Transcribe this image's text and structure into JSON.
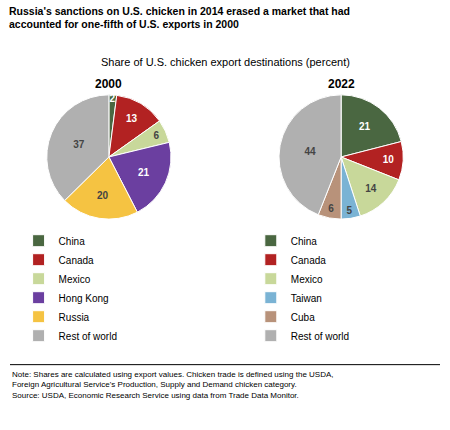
{
  "title": "Russia's sanctions on U.S. chicken in 2014 erased a market that had\naccounted for one-fifth of U.S. exports in 2000",
  "subtitle": "Share of U.S. chicken export destinations (percent)",
  "annotations": [
    "Note: Shares are calculated using export values. Chicken trade is defined using the USDA,",
    "Foreign Agricultural Service's Production, Supply and Demand chicken category.",
    "Source: USDA, Economic Research Service using data from Trade Data Monitor."
  ],
  "chart_data": [
    {
      "type": "pie",
      "title": "2000",
      "categories": [
        "China",
        "Canada",
        "Mexico",
        "Hong Kong",
        "Russia",
        "Rest of world"
      ],
      "values": [
        2,
        13,
        6,
        21,
        20,
        37
      ],
      "colors": [
        "#4a6741",
        "#b22222",
        "#c8d89a",
        "#6b3fa0",
        "#f5c342",
        "#b0b0b0"
      ],
      "data_labels": true,
      "legend": "bottom"
    },
    {
      "type": "pie",
      "title": "2022",
      "categories": [
        "China",
        "Canada",
        "Mexico",
        "Taiwan",
        "Cuba",
        "Rest of world"
      ],
      "values": [
        21,
        10,
        14,
        5,
        6,
        44
      ],
      "colors": [
        "#4a6741",
        "#b22222",
        "#c8d89a",
        "#7ab3d4",
        "#b8927a",
        "#b0b0b0"
      ],
      "data_labels": true,
      "legend": "bottom"
    }
  ]
}
